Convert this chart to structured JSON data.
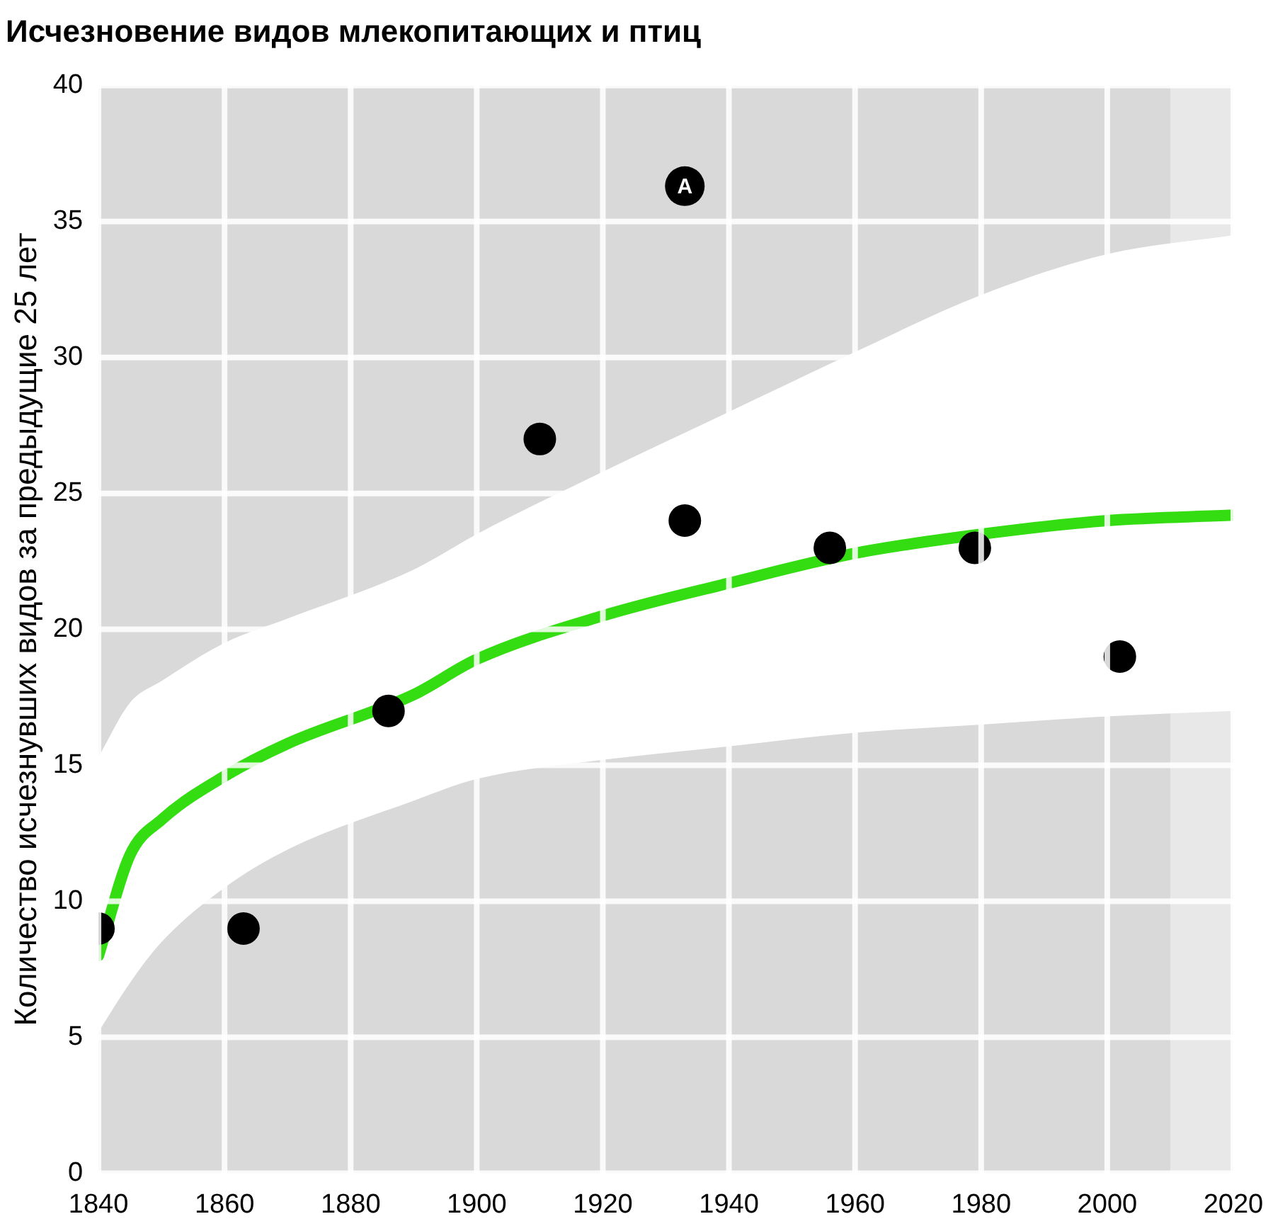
{
  "chart_data": {
    "type": "scatter",
    "title": "Исчезновение видов млекопитающих и птиц",
    "ylabel": "Количество исчезнувших видов за предыдущие 25 лет",
    "xlim": [
      1840,
      2020
    ],
    "xticks": [
      1840,
      1860,
      1880,
      1900,
      1920,
      1940,
      1960,
      1980,
      2000,
      2020
    ],
    "ylim": [
      0,
      40
    ],
    "yticks": [
      0,
      5,
      10,
      15,
      20,
      25,
      30,
      35,
      40
    ],
    "grid": true,
    "legend": false,
    "series": [
      {
        "type": "line",
        "marker": "none",
        "color": "#33dd11",
        "x": [
          1840,
          1845,
          1850,
          1860,
          1870,
          1890,
          1900,
          1920,
          1940,
          1960,
          1980,
          2000,
          2020
        ],
        "values": [
          8,
          11.7,
          13,
          14.6,
          15.8,
          17.6,
          18.9,
          20.5,
          21.7,
          22.8,
          23.5,
          24,
          24.2
        ],
        "lower": [
          5.2,
          7,
          8.5,
          10.5,
          11.9,
          13.7,
          14.5,
          15.2,
          15.7,
          16.2,
          16.5,
          16.8,
          17
        ],
        "upper": [
          15.3,
          17.3,
          18.1,
          19.5,
          20.4,
          22.2,
          23.5,
          25.8,
          28,
          30.2,
          32.3,
          33.8,
          34.5
        ]
      },
      {
        "marker": "circle",
        "color": "#000000",
        "x": [
          1840,
          1863,
          1886,
          1910,
          1933,
          1956,
          1979,
          2002
        ],
        "values": [
          9,
          9,
          17,
          27,
          24,
          23,
          23,
          19
        ]
      }
    ],
    "bands": [
      {
        "axis": "x",
        "from": 2010,
        "to": 2020,
        "color": "#e8e8e8"
      }
    ],
    "annotations": [
      {
        "text": "A",
        "x": 1933,
        "y": 36.3
      }
    ]
  }
}
